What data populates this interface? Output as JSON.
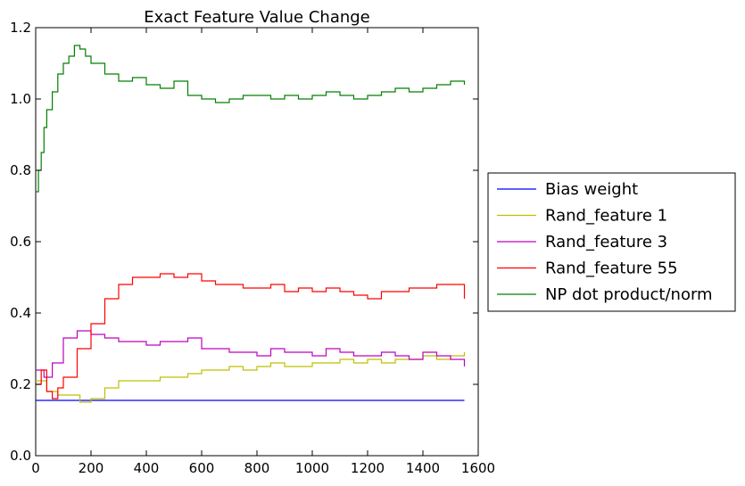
{
  "chart_data": {
    "type": "line",
    "title": "Exact Feature Value Change",
    "xlabel": "",
    "ylabel": "",
    "xlim": [
      0,
      1600
    ],
    "ylim": [
      0,
      1.2
    ],
    "xticks": [
      "0",
      "200",
      "400",
      "600",
      "800",
      "1000",
      "1200",
      "1400",
      "1600"
    ],
    "yticks": [
      "0.0",
      "0.2",
      "0.4",
      "0.6",
      "0.8",
      "1.0",
      "1.2"
    ],
    "grid": false,
    "legend_position": "outside-right",
    "series": [
      {
        "name": "Bias weight",
        "color": "#0000ff",
        "x": [
          0,
          1550
        ],
        "y": [
          0.155,
          0.155
        ]
      },
      {
        "name": "Rand_feature 1",
        "color": "#bfbf00",
        "x": [
          0,
          40,
          80,
          120,
          160,
          200,
          250,
          300,
          350,
          400,
          450,
          500,
          550,
          600,
          650,
          700,
          750,
          800,
          850,
          900,
          950,
          1000,
          1050,
          1100,
          1150,
          1200,
          1250,
          1300,
          1350,
          1400,
          1450,
          1500,
          1550
        ],
        "y": [
          0.21,
          0.18,
          0.17,
          0.17,
          0.15,
          0.16,
          0.19,
          0.21,
          0.21,
          0.21,
          0.22,
          0.22,
          0.23,
          0.24,
          0.24,
          0.25,
          0.24,
          0.25,
          0.26,
          0.25,
          0.25,
          0.26,
          0.26,
          0.27,
          0.26,
          0.27,
          0.26,
          0.27,
          0.27,
          0.28,
          0.27,
          0.28,
          0.29
        ]
      },
      {
        "name": "Rand_feature 3",
        "color": "#bf00bf",
        "x": [
          0,
          30,
          60,
          100,
          150,
          200,
          250,
          300,
          350,
          400,
          450,
          500,
          550,
          600,
          650,
          700,
          750,
          800,
          850,
          900,
          950,
          1000,
          1050,
          1100,
          1150,
          1200,
          1250,
          1300,
          1350,
          1400,
          1450,
          1500,
          1550
        ],
        "y": [
          0.24,
          0.22,
          0.26,
          0.33,
          0.35,
          0.34,
          0.33,
          0.32,
          0.32,
          0.31,
          0.32,
          0.32,
          0.33,
          0.3,
          0.3,
          0.29,
          0.29,
          0.28,
          0.3,
          0.29,
          0.29,
          0.28,
          0.3,
          0.29,
          0.28,
          0.28,
          0.29,
          0.28,
          0.27,
          0.29,
          0.28,
          0.27,
          0.25
        ]
      },
      {
        "name": "Rand_feature 55",
        "color": "#ff0000",
        "x": [
          0,
          20,
          40,
          60,
          80,
          100,
          150,
          200,
          250,
          300,
          350,
          400,
          450,
          500,
          550,
          600,
          650,
          700,
          750,
          800,
          850,
          900,
          950,
          1000,
          1050,
          1100,
          1150,
          1200,
          1250,
          1300,
          1350,
          1400,
          1450,
          1500,
          1550
        ],
        "y": [
          0.2,
          0.24,
          0.18,
          0.16,
          0.19,
          0.22,
          0.3,
          0.37,
          0.44,
          0.48,
          0.5,
          0.5,
          0.51,
          0.5,
          0.51,
          0.49,
          0.48,
          0.48,
          0.47,
          0.47,
          0.48,
          0.46,
          0.47,
          0.46,
          0.47,
          0.46,
          0.45,
          0.44,
          0.46,
          0.46,
          0.47,
          0.47,
          0.48,
          0.48,
          0.44
        ]
      },
      {
        "name": "NP dot product/norm",
        "color": "#008000",
        "x": [
          0,
          10,
          20,
          30,
          40,
          60,
          80,
          100,
          120,
          140,
          160,
          180,
          200,
          250,
          300,
          350,
          400,
          450,
          500,
          550,
          600,
          650,
          700,
          750,
          800,
          850,
          900,
          950,
          1000,
          1050,
          1100,
          1150,
          1200,
          1250,
          1300,
          1350,
          1400,
          1450,
          1500,
          1550
        ],
        "y": [
          0.74,
          0.8,
          0.85,
          0.92,
          0.97,
          1.02,
          1.07,
          1.1,
          1.12,
          1.15,
          1.14,
          1.12,
          1.1,
          1.07,
          1.05,
          1.06,
          1.04,
          1.03,
          1.05,
          1.01,
          1.0,
          0.99,
          1.0,
          1.01,
          1.01,
          1.0,
          1.01,
          1.0,
          1.01,
          1.02,
          1.01,
          1.0,
          1.01,
          1.02,
          1.03,
          1.02,
          1.03,
          1.04,
          1.05,
          1.04
        ]
      }
    ]
  }
}
